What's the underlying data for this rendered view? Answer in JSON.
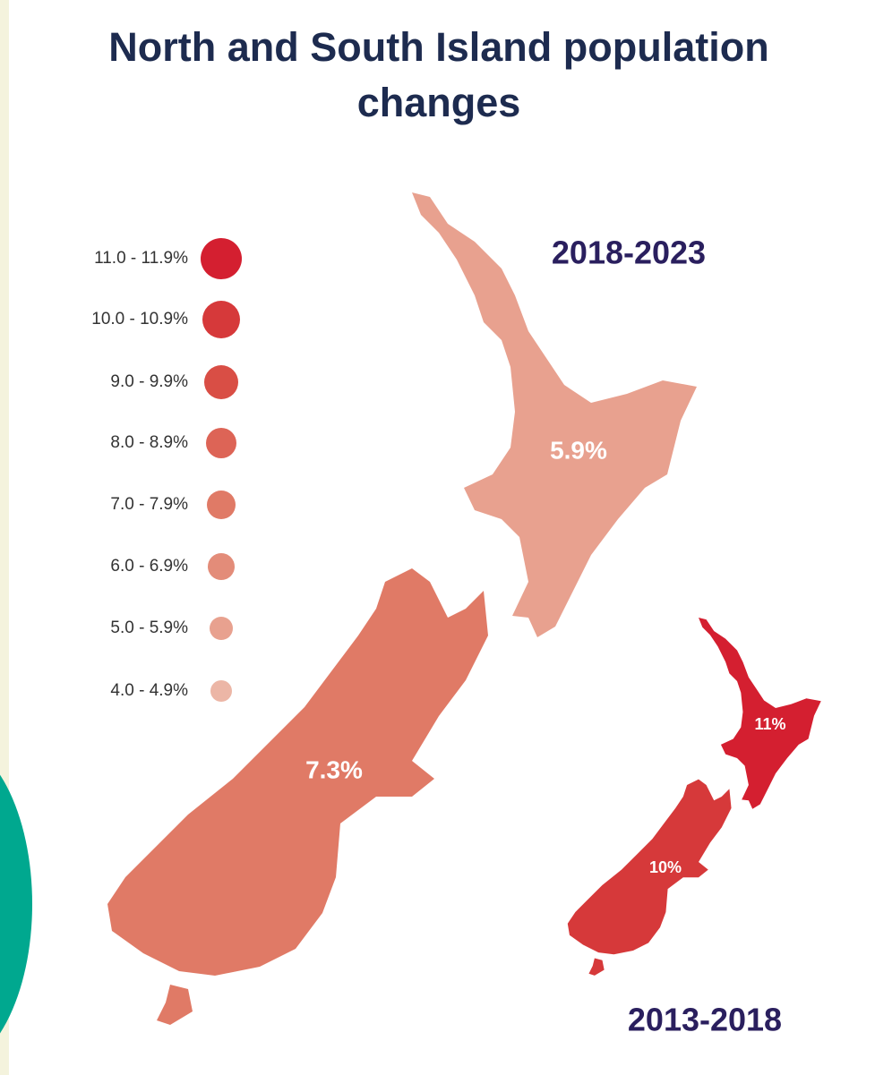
{
  "title": "North and South Island population changes",
  "legend": [
    {
      "label": "11.0 - 11.9%",
      "color": "#d41f30"
    },
    {
      "label": "10.0 - 10.9%",
      "color": "#d6393a"
    },
    {
      "label": "9.0 - 9.9%",
      "color": "#d94e45"
    },
    {
      "label": "8.0 - 8.9%",
      "color": "#dd6456"
    },
    {
      "label": "7.0 - 7.9%",
      "color": "#e07a66"
    },
    {
      "label": "6.0 - 6.9%",
      "color": "#e38c79"
    },
    {
      "label": "5.0 - 5.9%",
      "color": "#e8a18f"
    },
    {
      "label": "4.0 - 4.9%",
      "color": "#ecb6a6"
    }
  ],
  "maps": [
    {
      "period": "2018-2023",
      "regions": [
        {
          "name": "North Island",
          "label": "5.9%",
          "color": "#e8a18f"
        },
        {
          "name": "South Island",
          "label": "7.3%",
          "color": "#e07a66"
        }
      ]
    },
    {
      "period": "2013-2018",
      "regions": [
        {
          "name": "North Island",
          "label": "11%",
          "color": "#d41f30"
        },
        {
          "name": "South Island",
          "label": "10%",
          "color": "#d6393a"
        }
      ]
    }
  ]
}
